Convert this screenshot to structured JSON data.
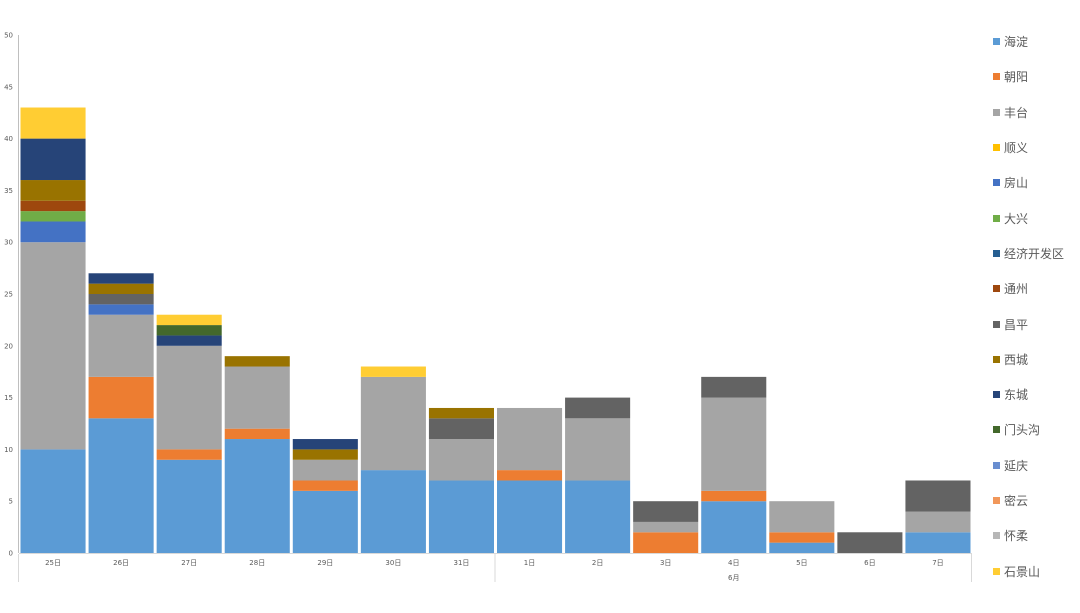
{
  "chart_data": {
    "type": "bar",
    "stacked": true,
    "categories": [
      "25日",
      "26日",
      "27日",
      "28日",
      "29日",
      "30日",
      "31日",
      "1日",
      "2日",
      "3日",
      "4日",
      "5日",
      "6日",
      "7日"
    ],
    "group_labels": [
      {
        "label": "",
        "from": 0,
        "to": 6
      },
      {
        "label": "6月",
        "from": 7,
        "to": 13
      }
    ],
    "ylim": [
      0,
      50
    ],
    "yticks": [
      0,
      5,
      10,
      15,
      20,
      25,
      30,
      35,
      40,
      45,
      50
    ],
    "legend_position": "right",
    "series": [
      {
        "name": "海淀",
        "color": "#5B9BD5",
        "values": [
          10,
          13,
          9,
          11,
          6,
          8,
          7,
          7,
          7,
          0,
          5,
          1,
          0,
          2
        ]
      },
      {
        "name": "朝阳",
        "color": "#ED7D31",
        "values": [
          0,
          4,
          1,
          1,
          1,
          0,
          0,
          1,
          0,
          2,
          1,
          1,
          0,
          0
        ]
      },
      {
        "name": "丰台",
        "color": "#A5A5A5",
        "values": [
          20,
          6,
          10,
          6,
          2,
          9,
          4,
          6,
          6,
          1,
          9,
          3,
          0,
          2
        ]
      },
      {
        "name": "顺义",
        "color": "#FFC000",
        "values": [
          0,
          0,
          0,
          0,
          0,
          0,
          0,
          0,
          0,
          0,
          0,
          0,
          0,
          0
        ]
      },
      {
        "name": "房山",
        "color": "#4472C4",
        "values": [
          2,
          1,
          0,
          0,
          0,
          0,
          0,
          0,
          0,
          0,
          0,
          0,
          0,
          0
        ]
      },
      {
        "name": "大兴",
        "color": "#70AD47",
        "values": [
          1,
          0,
          0,
          0,
          0,
          0,
          0,
          0,
          0,
          0,
          0,
          0,
          0,
          0
        ]
      },
      {
        "name": "经济开发区",
        "color": "#255E91",
        "values": [
          0,
          0,
          0,
          0,
          0,
          0,
          0,
          0,
          0,
          0,
          0,
          0,
          0,
          0
        ]
      },
      {
        "name": "通州",
        "color": "#9E480E",
        "values": [
          1,
          0,
          0,
          0,
          0,
          0,
          0,
          0,
          0,
          0,
          0,
          0,
          0,
          0
        ]
      },
      {
        "name": "昌平",
        "color": "#636363",
        "values": [
          0,
          1,
          0,
          0,
          0,
          0,
          2,
          0,
          2,
          2,
          2,
          0,
          2,
          3
        ]
      },
      {
        "name": "西城",
        "color": "#997300",
        "values": [
          2,
          1,
          0,
          1,
          1,
          0,
          1,
          0,
          0,
          0,
          0,
          0,
          0,
          0
        ]
      },
      {
        "name": "东城",
        "color": "#264478",
        "values": [
          4,
          1,
          1,
          0,
          1,
          0,
          0,
          0,
          0,
          0,
          0,
          0,
          0,
          0
        ]
      },
      {
        "name": "门头沟",
        "color": "#43682B",
        "values": [
          0,
          0,
          1,
          0,
          0,
          0,
          0,
          0,
          0,
          0,
          0,
          0,
          0,
          0
        ]
      },
      {
        "name": "延庆",
        "color": "#698ED0",
        "values": [
          0,
          0,
          0,
          0,
          0,
          0,
          0,
          0,
          0,
          0,
          0,
          0,
          0,
          0
        ]
      },
      {
        "name": "密云",
        "color": "#F1975A",
        "values": [
          0,
          0,
          0,
          0,
          0,
          0,
          0,
          0,
          0,
          0,
          0,
          0,
          0,
          0
        ]
      },
      {
        "name": "怀柔",
        "color": "#B7B7B7",
        "values": [
          0,
          0,
          0,
          0,
          0,
          0,
          0,
          0,
          0,
          0,
          0,
          0,
          0,
          0
        ]
      },
      {
        "name": "石景山",
        "color": "#FFCD33",
        "values": [
          3,
          0,
          1,
          0,
          0,
          1,
          0,
          0,
          0,
          0,
          0,
          0,
          0,
          0
        ]
      }
    ]
  }
}
